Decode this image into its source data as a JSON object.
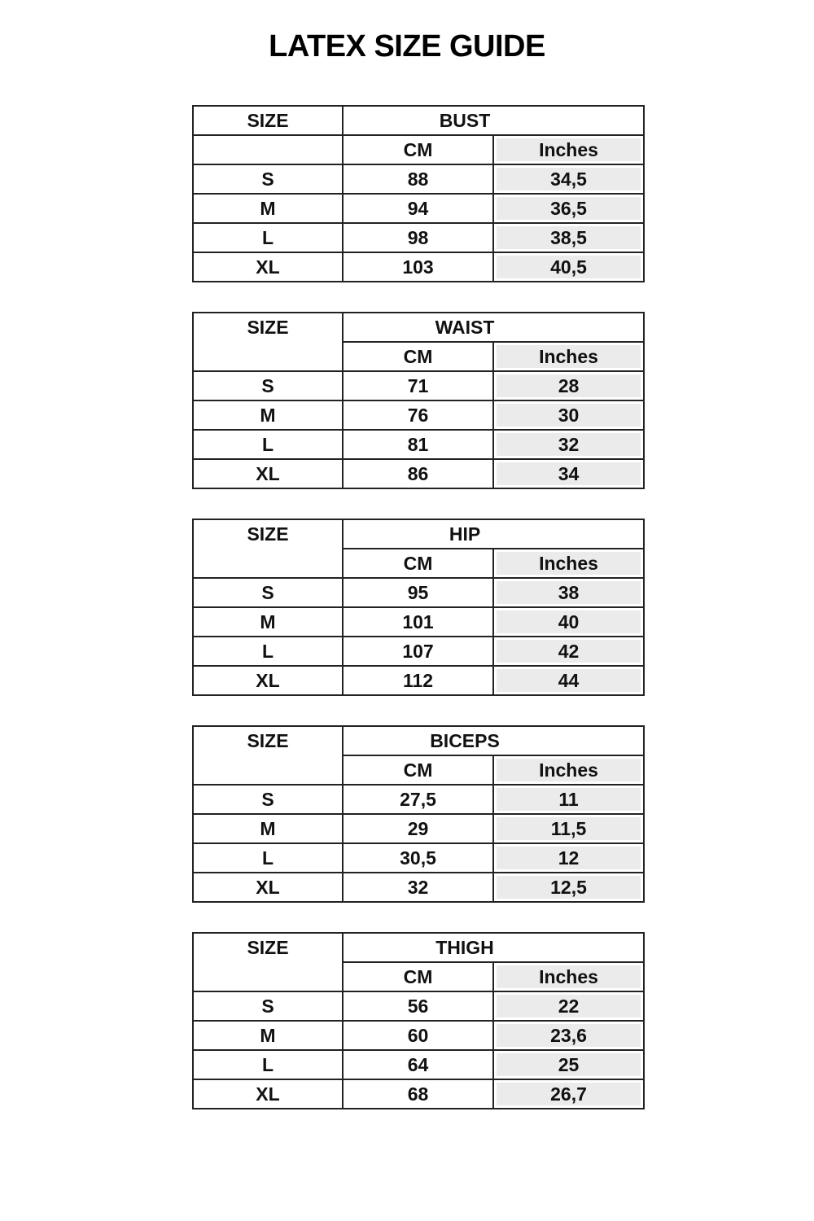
{
  "title": "LATEX SIZE GUIDE",
  "labels": {
    "size": "SIZE",
    "cm": "CM",
    "inches": "Inches"
  },
  "colors": {
    "inches_fill": "#ebebeb",
    "border": "#222222"
  },
  "tables": [
    {
      "measure": "BUST",
      "rows": [
        {
          "size": "S",
          "cm": "88",
          "inches": "34,5"
        },
        {
          "size": "M",
          "cm": "94",
          "inches": "36,5"
        },
        {
          "size": "L",
          "cm": "98",
          "inches": "38,5"
        },
        {
          "size": "XL",
          "cm": "103",
          "inches": "40,5"
        }
      ]
    },
    {
      "measure": "WAIST",
      "rows": [
        {
          "size": "S",
          "cm": "71",
          "inches": "28"
        },
        {
          "size": "M",
          "cm": "76",
          "inches": "30"
        },
        {
          "size": "L",
          "cm": "81",
          "inches": "32"
        },
        {
          "size": "XL",
          "cm": "86",
          "inches": "34"
        }
      ]
    },
    {
      "measure": "HIP",
      "rows": [
        {
          "size": "S",
          "cm": "95",
          "inches": "38"
        },
        {
          "size": "M",
          "cm": "101",
          "inches": "40"
        },
        {
          "size": "L",
          "cm": "107",
          "inches": "42"
        },
        {
          "size": "XL",
          "cm": "112",
          "inches": "44"
        }
      ]
    },
    {
      "measure": "BICEPS",
      "rows": [
        {
          "size": "S",
          "cm": "27,5",
          "inches": "11"
        },
        {
          "size": "M",
          "cm": "29",
          "inches": "11,5"
        },
        {
          "size": "L",
          "cm": "30,5",
          "inches": "12"
        },
        {
          "size": "XL",
          "cm": "32",
          "inches": "12,5"
        }
      ]
    },
    {
      "measure": "THIGH",
      "rows": [
        {
          "size": "S",
          "cm": "56",
          "inches": "22"
        },
        {
          "size": "M",
          "cm": "60",
          "inches": "23,6"
        },
        {
          "size": "L",
          "cm": "64",
          "inches": "25"
        },
        {
          "size": "XL",
          "cm": "68",
          "inches": "26,7"
        }
      ]
    }
  ]
}
